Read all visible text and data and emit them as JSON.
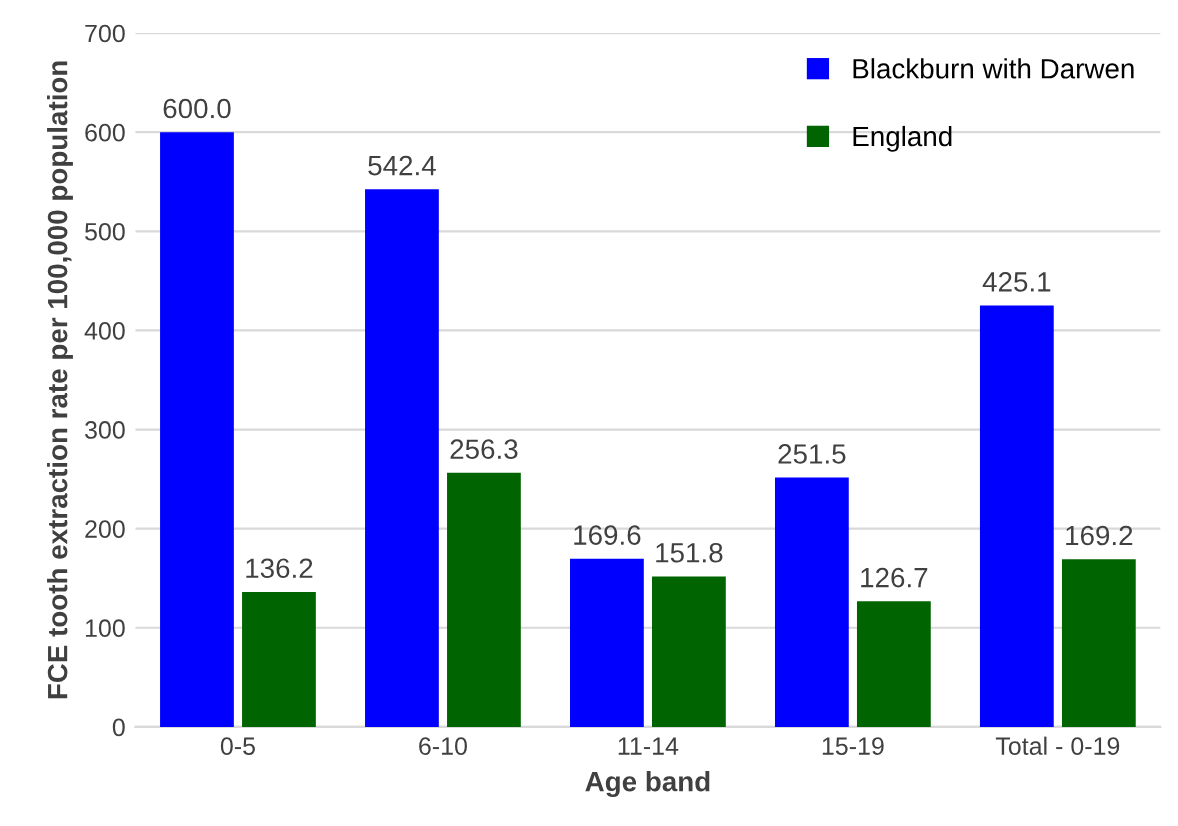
{
  "chart_data": {
    "type": "bar",
    "xlabel": "Age band",
    "ylabel": "FCE tooth extraction rate per 100,000 population",
    "categories": [
      "0-5",
      "6-10",
      "11-14",
      "15-19",
      "Total - 0-19"
    ],
    "series": [
      {
        "name": "Blackburn with Darwen",
        "color": "#0000ff",
        "values": [
          600.0,
          542.4,
          169.6,
          251.5,
          425.1
        ],
        "value_labels": [
          "600.0",
          "542.4",
          "169.6",
          "251.5",
          "425.1"
        ]
      },
      {
        "name": "England",
        "color": "#006400",
        "values": [
          136.2,
          256.3,
          151.8,
          126.7,
          169.2
        ],
        "value_labels": [
          "136.2",
          "256.3",
          "151.8",
          "126.7",
          "169.2"
        ]
      }
    ],
    "ylim": [
      0,
      700
    ],
    "yticks": [
      0,
      100,
      200,
      300,
      400,
      500,
      600,
      700
    ],
    "grid": "y",
    "legend": "top right"
  }
}
